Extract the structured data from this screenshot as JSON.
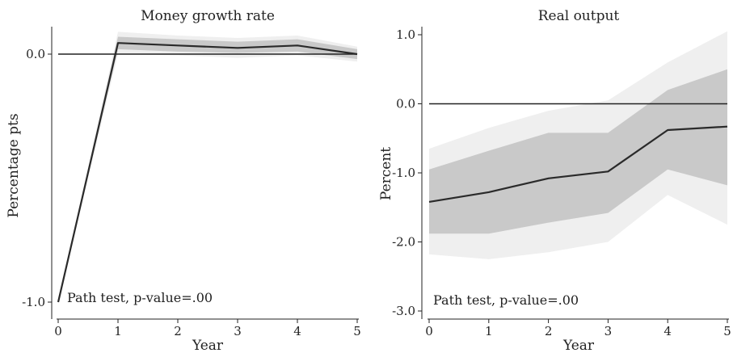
{
  "chart_data": [
    {
      "type": "line",
      "title": "Money growth rate",
      "xlabel": "Year",
      "ylabel": "Percentage pts",
      "x": [
        0,
        1,
        2,
        3,
        4,
        5
      ],
      "xlim": [
        0,
        5
      ],
      "ylim": [
        -1.0,
        0.07
      ],
      "yticks": [
        -1.0,
        0.0
      ],
      "ytick_labels": [
        "-1.0",
        "0.0"
      ],
      "xtick_labels": [
        "0",
        "1",
        "2",
        "3",
        "4",
        "5"
      ],
      "reference_line": 0,
      "series": [
        {
          "values": [
            -1.0,
            0.045,
            0.035,
            0.025,
            0.035,
            0.0
          ]
        }
      ],
      "bands": [
        {
          "lower": [
            -1.0,
            0.0,
            -0.005,
            -0.015,
            -0.005,
            -0.03
          ],
          "upper": [
            -1.0,
            0.09,
            0.075,
            0.065,
            0.075,
            0.03
          ]
        },
        {
          "lower": [
            -1.0,
            0.02,
            0.01,
            0.005,
            0.01,
            -0.02
          ],
          "upper": [
            -1.0,
            0.07,
            0.06,
            0.05,
            0.06,
            0.02
          ]
        }
      ],
      "annotation": "Path test, p-value=.00",
      "grid": false
    },
    {
      "type": "line",
      "title": "Real output",
      "xlabel": "Year",
      "ylabel": "Percent",
      "x": [
        0,
        1,
        2,
        3,
        4,
        5
      ],
      "xlim": [
        0,
        5
      ],
      "ylim": [
        -3.0,
        1.0
      ],
      "yticks": [
        -3.0,
        -2.0,
        -1.0,
        0.0,
        1.0
      ],
      "ytick_labels": [
        "-3.0",
        "-2.0",
        "-1.0",
        "0.0",
        "1.0"
      ],
      "xtick_labels": [
        "0",
        "1",
        "2",
        "3",
        "4",
        "5"
      ],
      "reference_line": 0,
      "series": [
        {
          "values": [
            -1.42,
            -1.28,
            -1.08,
            -0.98,
            -0.38,
            -0.33
          ]
        }
      ],
      "bands": [
        {
          "lower": [
            -2.18,
            -2.25,
            -2.15,
            -2.0,
            -1.32,
            -1.75
          ],
          "upper": [
            -0.65,
            -0.35,
            -0.1,
            0.05,
            0.6,
            1.05
          ]
        },
        {
          "lower": [
            -1.88,
            -1.88,
            -1.72,
            -1.58,
            -0.95,
            -1.18
          ],
          "upper": [
            -0.95,
            -0.68,
            -0.42,
            -0.42,
            0.2,
            0.5
          ]
        }
      ],
      "annotation": "Path test, p-value=.00",
      "grid": false
    }
  ]
}
